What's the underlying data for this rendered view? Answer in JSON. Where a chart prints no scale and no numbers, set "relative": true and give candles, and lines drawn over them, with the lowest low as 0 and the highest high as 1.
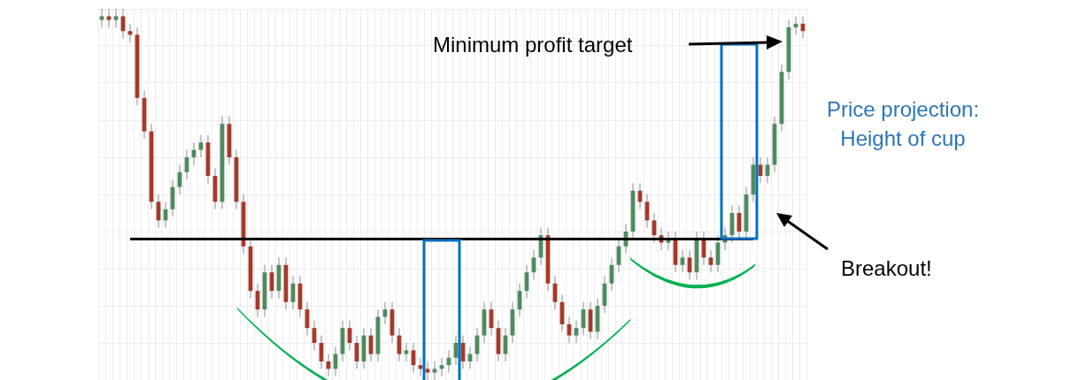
{
  "chart_data": {
    "type": "candlestick",
    "relative": true,
    "grid": true,
    "tick_labels": false,
    "categories": [
      null,
      null,
      null,
      null,
      null,
      null,
      null,
      null,
      null,
      null,
      null,
      null,
      null,
      null,
      null,
      null,
      null,
      null,
      null,
      null,
      null,
      null,
      null,
      null,
      null,
      null,
      null,
      null,
      null,
      null,
      null,
      null,
      null,
      null,
      null,
      null,
      null,
      null,
      null,
      null,
      null,
      null,
      null,
      null,
      null,
      null,
      null,
      null,
      null,
      null,
      null,
      null,
      null,
      null,
      null,
      null,
      null,
      null,
      null,
      null,
      null,
      null,
      null,
      null,
      null,
      null,
      null,
      null,
      null,
      null,
      null,
      null,
      null,
      null,
      null,
      null,
      null,
      null,
      null,
      null,
      null,
      null,
      null,
      null,
      null,
      null,
      null,
      null,
      null,
      null,
      null,
      null,
      null,
      null,
      null,
      null,
      null,
      null,
      null,
      null
    ],
    "ohlc": [
      [
        0.97,
        1.0,
        0.95,
        0.98
      ],
      [
        0.98,
        1.0,
        0.95,
        0.97
      ],
      [
        0.97,
        1.0,
        0.95,
        0.98
      ],
      [
        0.98,
        1.0,
        0.92,
        0.94
      ],
      [
        0.94,
        0.96,
        0.91,
        0.93
      ],
      [
        0.93,
        0.95,
        0.74,
        0.76
      ],
      [
        0.76,
        0.78,
        0.65,
        0.67
      ],
      [
        0.67,
        0.69,
        0.46,
        0.48
      ],
      [
        0.48,
        0.5,
        0.41,
        0.43
      ],
      [
        0.43,
        0.48,
        0.41,
        0.46
      ],
      [
        0.46,
        0.54,
        0.44,
        0.52
      ],
      [
        0.52,
        0.58,
        0.5,
        0.56
      ],
      [
        0.56,
        0.62,
        0.54,
        0.6
      ],
      [
        0.6,
        0.64,
        0.58,
        0.62
      ],
      [
        0.62,
        0.66,
        0.6,
        0.64
      ],
      [
        0.64,
        0.66,
        0.53,
        0.55
      ],
      [
        0.55,
        0.57,
        0.46,
        0.48
      ],
      [
        0.48,
        0.71,
        0.46,
        0.69
      ],
      [
        0.69,
        0.71,
        0.58,
        0.6
      ],
      [
        0.6,
        0.62,
        0.46,
        0.48
      ],
      [
        0.48,
        0.5,
        0.34,
        0.36
      ],
      [
        0.36,
        0.38,
        0.22,
        0.24
      ],
      [
        0.24,
        0.26,
        0.17,
        0.19
      ],
      [
        0.19,
        0.31,
        0.17,
        0.29
      ],
      [
        0.29,
        0.31,
        0.22,
        0.24
      ],
      [
        0.24,
        0.33,
        0.22,
        0.31
      ],
      [
        0.31,
        0.33,
        0.19,
        0.21
      ],
      [
        0.21,
        0.28,
        0.19,
        0.26
      ],
      [
        0.26,
        0.28,
        0.17,
        0.19
      ],
      [
        0.19,
        0.21,
        0.12,
        0.14
      ],
      [
        0.14,
        0.16,
        0.08,
        0.1
      ],
      [
        0.1,
        0.12,
        0.03,
        0.05
      ],
      [
        0.05,
        0.07,
        0.01,
        0.03
      ],
      [
        0.03,
        0.09,
        0.01,
        0.07
      ],
      [
        0.07,
        0.16,
        0.05,
        0.14
      ],
      [
        0.14,
        0.16,
        0.08,
        0.1
      ],
      [
        0.1,
        0.12,
        0.03,
        0.05
      ],
      [
        0.05,
        0.14,
        0.03,
        0.12
      ],
      [
        0.12,
        0.14,
        0.05,
        0.07
      ],
      [
        0.07,
        0.19,
        0.05,
        0.17
      ],
      [
        0.17,
        0.21,
        0.15,
        0.19
      ],
      [
        0.19,
        0.21,
        0.1,
        0.12
      ],
      [
        0.12,
        0.14,
        0.05,
        0.07
      ],
      [
        0.07,
        0.1,
        0.05,
        0.08
      ],
      [
        0.08,
        0.1,
        0.02,
        0.04
      ],
      [
        0.04,
        0.06,
        0.01,
        0.03
      ],
      [
        0.03,
        0.05,
        0.0,
        0.02
      ],
      [
        0.02,
        0.05,
        0.0,
        0.03
      ],
      [
        0.03,
        0.06,
        0.01,
        0.04
      ],
      [
        0.04,
        0.08,
        0.02,
        0.06
      ],
      [
        0.06,
        0.12,
        0.04,
        0.1
      ],
      [
        0.1,
        0.12,
        0.03,
        0.05
      ],
      [
        0.05,
        0.09,
        0.03,
        0.07
      ],
      [
        0.07,
        0.14,
        0.05,
        0.12
      ],
      [
        0.12,
        0.21,
        0.1,
        0.19
      ],
      [
        0.19,
        0.21,
        0.12,
        0.14
      ],
      [
        0.14,
        0.16,
        0.05,
        0.07
      ],
      [
        0.07,
        0.14,
        0.05,
        0.12
      ],
      [
        0.12,
        0.21,
        0.1,
        0.19
      ],
      [
        0.19,
        0.26,
        0.17,
        0.24
      ],
      [
        0.24,
        0.31,
        0.22,
        0.29
      ],
      [
        0.29,
        0.35,
        0.27,
        0.33
      ],
      [
        0.33,
        0.41,
        0.31,
        0.39
      ],
      [
        0.39,
        0.41,
        0.24,
        0.26
      ],
      [
        0.26,
        0.28,
        0.19,
        0.21
      ],
      [
        0.21,
        0.23,
        0.13,
        0.15
      ],
      [
        0.15,
        0.17,
        0.1,
        0.12
      ],
      [
        0.12,
        0.16,
        0.1,
        0.14
      ],
      [
        0.14,
        0.21,
        0.12,
        0.19
      ],
      [
        0.19,
        0.21,
        0.11,
        0.13
      ],
      [
        0.13,
        0.22,
        0.11,
        0.2
      ],
      [
        0.2,
        0.28,
        0.18,
        0.26
      ],
      [
        0.26,
        0.33,
        0.24,
        0.31
      ],
      [
        0.31,
        0.38,
        0.29,
        0.36
      ],
      [
        0.36,
        0.42,
        0.34,
        0.4
      ],
      [
        0.4,
        0.53,
        0.38,
        0.51
      ],
      [
        0.51,
        0.53,
        0.46,
        0.48
      ],
      [
        0.48,
        0.5,
        0.41,
        0.43
      ],
      [
        0.43,
        0.45,
        0.37,
        0.39
      ],
      [
        0.39,
        0.41,
        0.35,
        0.37
      ],
      [
        0.37,
        0.4,
        0.35,
        0.38
      ],
      [
        0.38,
        0.4,
        0.29,
        0.31
      ],
      [
        0.31,
        0.35,
        0.29,
        0.33
      ],
      [
        0.33,
        0.35,
        0.27,
        0.29
      ],
      [
        0.29,
        0.4,
        0.27,
        0.38
      ],
      [
        0.38,
        0.4,
        0.31,
        0.33
      ],
      [
        0.33,
        0.35,
        0.29,
        0.31
      ],
      [
        0.31,
        0.39,
        0.29,
        0.37
      ],
      [
        0.37,
        0.41,
        0.35,
        0.39
      ],
      [
        0.39,
        0.47,
        0.37,
        0.45
      ],
      [
        0.45,
        0.47,
        0.38,
        0.4
      ],
      [
        0.4,
        0.52,
        0.38,
        0.5
      ],
      [
        0.5,
        0.6,
        0.48,
        0.58
      ],
      [
        0.58,
        0.6,
        0.53,
        0.55
      ],
      [
        0.55,
        0.6,
        0.53,
        0.58
      ],
      [
        0.58,
        0.71,
        0.56,
        0.69
      ],
      [
        0.69,
        0.85,
        0.67,
        0.83
      ],
      [
        0.83,
        0.97,
        0.81,
        0.95
      ],
      [
        0.95,
        0.98,
        0.93,
        0.96
      ],
      [
        0.96,
        0.98,
        0.92,
        0.94
      ]
    ],
    "ref_lines": [
      {
        "axis": "y",
        "value": 0.38,
        "color": "#000000"
      }
    ],
    "annotations": [
      "Minimum profit target",
      "Price projection:\nHeight of cup",
      "Breakout!"
    ]
  }
}
